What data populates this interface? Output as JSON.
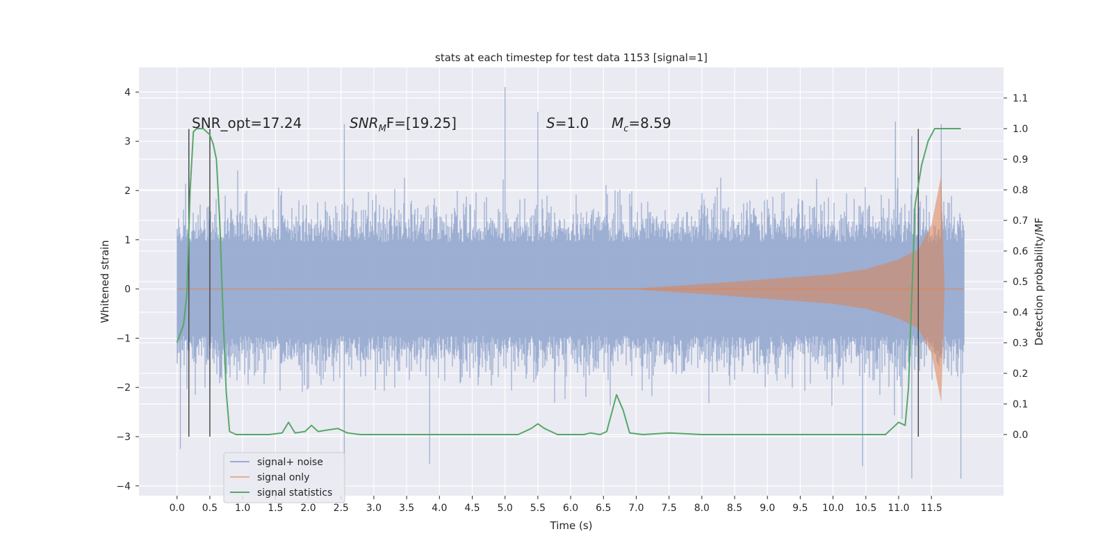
{
  "chart_data": {
    "type": "line",
    "title": "stats at each timestep for test data 1153 [signal=1]",
    "xlabel": "Time (s)",
    "ylabel_left": "Whitened strain",
    "ylabel_right": "Detection probability/MF",
    "xlim": [
      -0.58,
      12.6
    ],
    "ylim_left": [
      -4.2,
      4.5
    ],
    "ylim_right": [
      -0.2,
      1.2
    ],
    "x_ticks": [
      "0.0",
      "0.5",
      "1.0",
      "1.5",
      "2.0",
      "2.5",
      "3.0",
      "3.5",
      "4.0",
      "4.5",
      "5.0",
      "5.5",
      "6.0",
      "6.5",
      "7.0",
      "7.5",
      "8.0",
      "8.5",
      "9.0",
      "9.5",
      "10.0",
      "10.5",
      "11.0",
      "11.5"
    ],
    "y_left_ticks": [
      "−4",
      "−3",
      "−2",
      "−1",
      "0",
      "1",
      "2",
      "3",
      "4"
    ],
    "y_right_ticks": [
      "0.0",
      "0.1",
      "0.2",
      "0.3",
      "0.4",
      "0.5",
      "0.6",
      "0.7",
      "0.8",
      "0.9",
      "1.0",
      "1.1"
    ],
    "grid": true,
    "legend_location": "lower-left",
    "colors": {
      "background": "#eaeaf2",
      "grid": "#ffffff",
      "noise": "#98abd0",
      "signal": "#dd8452",
      "stats": "#55a868",
      "vlines": "#4a4a4a"
    },
    "annotations": {
      "snr_opt": "SNR_opt=17.24",
      "snr_mf_main": "SNR",
      "snr_mf_sub": "M",
      "snr_mf_rest": "F=[19.25]",
      "s_main": "S",
      "s_rest": "=1.0",
      "mc_main": "M",
      "mc_sub": "c",
      "mc_rest": "=8.59"
    },
    "vlines_x": [
      0.18,
      0.5,
      11.3
    ],
    "vlines_range_left": [
      -3.0,
      3.25
    ],
    "series": [
      {
        "name": "signal+ noise",
        "x_range": [
          0.0,
          12.0
        ],
        "typical_envelope": [
          -1.5,
          1.5
        ],
        "peaks": [
          {
            "x": 5.0,
            "y": 4.1
          },
          {
            "x": 5.5,
            "y": 3.6
          },
          {
            "x": 2.55,
            "y": 3.35
          },
          {
            "x": 10.95,
            "y": 3.4
          },
          {
            "x": 11.65,
            "y": 3.35
          },
          {
            "x": 11.2,
            "y": 3.1
          },
          {
            "x": 3.85,
            "y": -3.55
          },
          {
            "x": 11.2,
            "y": -3.85
          },
          {
            "x": 11.95,
            "y": -3.85
          },
          {
            "x": 10.45,
            "y": -3.6
          },
          {
            "x": 0.05,
            "y": -3.25
          },
          {
            "x": 2.55,
            "y": -3.6
          }
        ]
      },
      {
        "name": "signal only",
        "x_range": [
          0.0,
          12.0
        ],
        "envelope": [
          [
            0.0,
            0.0
          ],
          [
            7.0,
            0.01
          ],
          [
            8.0,
            0.1
          ],
          [
            9.0,
            0.2
          ],
          [
            10.0,
            0.3
          ],
          [
            10.5,
            0.4
          ],
          [
            11.0,
            0.6
          ],
          [
            11.3,
            0.8
          ],
          [
            11.5,
            1.3
          ],
          [
            11.65,
            2.3
          ],
          [
            11.7,
            0.0
          ],
          [
            12.0,
            0.0
          ]
        ]
      },
      {
        "name": "signal statistics",
        "axis": "right",
        "points": [
          [
            0.0,
            0.3
          ],
          [
            0.1,
            0.36
          ],
          [
            0.15,
            0.46
          ],
          [
            0.2,
            0.8
          ],
          [
            0.25,
            0.99
          ],
          [
            0.3,
            1.0
          ],
          [
            0.4,
            1.0
          ],
          [
            0.5,
            0.98
          ],
          [
            0.55,
            0.95
          ],
          [
            0.6,
            0.9
          ],
          [
            0.65,
            0.7
          ],
          [
            0.7,
            0.4
          ],
          [
            0.75,
            0.14
          ],
          [
            0.8,
            0.01
          ],
          [
            0.9,
            0.0
          ],
          [
            1.2,
            0.0
          ],
          [
            1.4,
            0.0
          ],
          [
            1.6,
            0.005
          ],
          [
            1.7,
            0.04
          ],
          [
            1.8,
            0.005
          ],
          [
            1.95,
            0.01
          ],
          [
            2.05,
            0.03
          ],
          [
            2.15,
            0.01
          ],
          [
            2.3,
            0.015
          ],
          [
            2.45,
            0.02
          ],
          [
            2.6,
            0.005
          ],
          [
            2.8,
            0.0
          ],
          [
            4.0,
            0.0
          ],
          [
            5.2,
            0.0
          ],
          [
            5.4,
            0.02
          ],
          [
            5.5,
            0.035
          ],
          [
            5.6,
            0.02
          ],
          [
            5.8,
            0.0
          ],
          [
            6.2,
            0.0
          ],
          [
            6.3,
            0.005
          ],
          [
            6.45,
            0.0
          ],
          [
            6.55,
            0.01
          ],
          [
            6.7,
            0.13
          ],
          [
            6.8,
            0.08
          ],
          [
            6.9,
            0.005
          ],
          [
            7.1,
            0.0
          ],
          [
            7.5,
            0.005
          ],
          [
            8.0,
            0.0
          ],
          [
            10.8,
            0.0
          ],
          [
            10.9,
            0.02
          ],
          [
            11.0,
            0.04
          ],
          [
            11.1,
            0.03
          ],
          [
            11.15,
            0.15
          ],
          [
            11.2,
            0.45
          ],
          [
            11.25,
            0.75
          ],
          [
            11.35,
            0.88
          ],
          [
            11.45,
            0.96
          ],
          [
            11.55,
            1.0
          ],
          [
            11.7,
            1.0
          ],
          [
            11.95,
            1.0
          ]
        ]
      }
    ],
    "legend": [
      {
        "label": "signal+ noise",
        "color": "#98abd0"
      },
      {
        "label": "signal only",
        "color": "#dd8452"
      },
      {
        "label": "signal statistics",
        "color": "#55a868"
      }
    ]
  }
}
